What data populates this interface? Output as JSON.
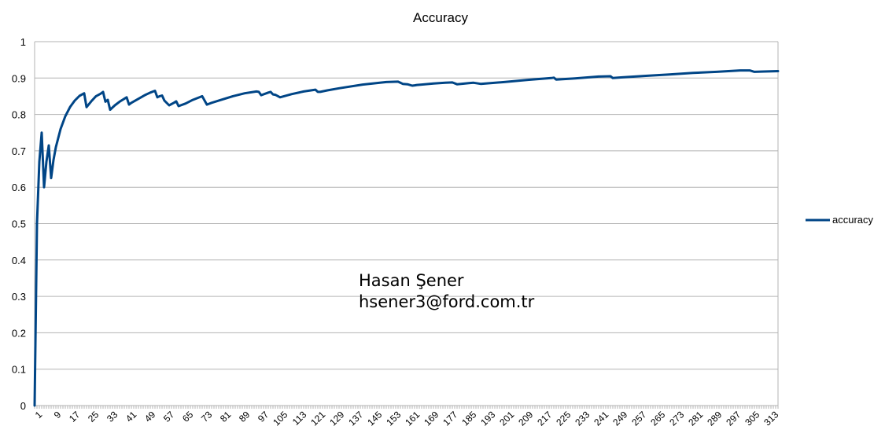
{
  "chart_data": {
    "type": "line",
    "title": "Accuracy",
    "xlabel": "",
    "ylabel": "",
    "ylim": [
      0,
      1
    ],
    "xlim": [
      1,
      316
    ],
    "yticks": [
      0,
      0.1,
      0.2,
      0.3,
      0.4,
      0.5,
      0.6,
      0.7,
      0.8,
      0.9,
      1
    ],
    "ytick_labels": [
      "0",
      "0.1",
      "0.2",
      "0.3",
      "0.4",
      "0.5",
      "0.6",
      "0.7",
      "0.8",
      "0.9",
      "1"
    ],
    "xtick_labels": [
      "1",
      "9",
      "17",
      "25",
      "33",
      "41",
      "49",
      "57",
      "65",
      "73",
      "81",
      "89",
      "97",
      "105",
      "113",
      "121",
      "129",
      "137",
      "145",
      "153",
      "161",
      "169",
      "177",
      "185",
      "193",
      "201",
      "209",
      "217",
      "225",
      "233",
      "241",
      "249",
      "257",
      "265",
      "273",
      "281",
      "289",
      "297",
      "305",
      "313"
    ],
    "grid": true,
    "legend_position": "right",
    "annotation_lines": [
      "Hasan Şener",
      "hsener3@ford.com.tr"
    ],
    "series": [
      {
        "name": "accuracy",
        "color": "#004586",
        "x": [
          1,
          2,
          3,
          4,
          5,
          6,
          7,
          8,
          9,
          10,
          12,
          14,
          16,
          18,
          20,
          22,
          23,
          25,
          27,
          29,
          30,
          31,
          32,
          33,
          35,
          37,
          40,
          41,
          42,
          45,
          48,
          50,
          52,
          53,
          54,
          55,
          56,
          58,
          60,
          61,
          62,
          65,
          68,
          72,
          74,
          76,
          80,
          85,
          90,
          95,
          96,
          97,
          100,
          101,
          102,
          103,
          105,
          110,
          115,
          120,
          121,
          122,
          125,
          130,
          140,
          150,
          155,
          157,
          159,
          161,
          162,
          163,
          165,
          170,
          175,
          178,
          180,
          185,
          187,
          190,
          200,
          210,
          220,
          221,
          222,
          230,
          240,
          245,
          246,
          250,
          260,
          270,
          280,
          290,
          300,
          304,
          306,
          310,
          316
        ],
        "y": [
          0.0,
          0.5,
          0.67,
          0.75,
          0.6,
          0.67,
          0.715,
          0.625,
          0.675,
          0.71,
          0.76,
          0.795,
          0.82,
          0.838,
          0.851,
          0.858,
          0.82,
          0.836,
          0.85,
          0.857,
          0.862,
          0.835,
          0.84,
          0.813,
          0.825,
          0.835,
          0.847,
          0.827,
          0.832,
          0.843,
          0.854,
          0.86,
          0.865,
          0.847,
          0.85,
          0.852,
          0.838,
          0.825,
          0.832,
          0.836,
          0.823,
          0.83,
          0.84,
          0.85,
          0.827,
          0.832,
          0.84,
          0.85,
          0.858,
          0.863,
          0.862,
          0.853,
          0.86,
          0.862,
          0.855,
          0.854,
          0.847,
          0.856,
          0.863,
          0.868,
          0.862,
          0.862,
          0.866,
          0.872,
          0.882,
          0.889,
          0.89,
          0.884,
          0.883,
          0.879,
          0.88,
          0.881,
          0.882,
          0.885,
          0.887,
          0.888,
          0.883,
          0.886,
          0.887,
          0.884,
          0.889,
          0.895,
          0.9,
          0.901,
          0.896,
          0.899,
          0.904,
          0.905,
          0.9,
          0.902,
          0.906,
          0.91,
          0.914,
          0.917,
          0.921,
          0.921,
          0.917,
          0.918,
          0.919
        ]
      }
    ]
  }
}
